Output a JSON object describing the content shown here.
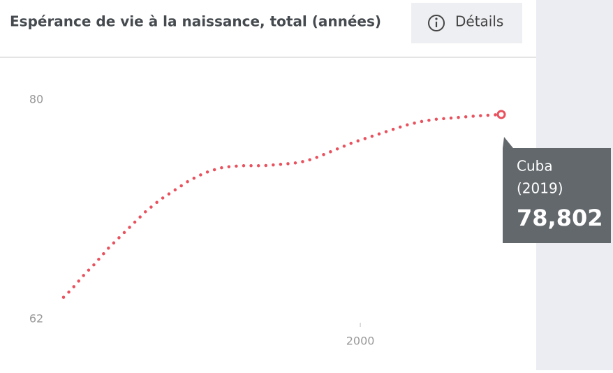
{
  "header": {
    "title": "Espérance de vie à la naissance, total (années)",
    "button": "Détails"
  },
  "chart_data": {
    "type": "line",
    "x": [
      1960,
      1961,
      1962,
      1963,
      1964,
      1965,
      1966,
      1967,
      1968,
      1969,
      1970,
      1971,
      1972,
      1973,
      1974,
      1975,
      1976,
      1977,
      1978,
      1979,
      1980,
      1981,
      1982,
      1983,
      1984,
      1985,
      1986,
      1987,
      1988,
      1989,
      1990,
      1991,
      1992,
      1993,
      1994,
      1995,
      1996,
      1997,
      1998,
      1999,
      2000,
      2001,
      2002,
      2003,
      2004,
      2005,
      2006,
      2007,
      2008,
      2009,
      2010,
      2011,
      2012,
      2013,
      2014,
      2015,
      2016,
      2017,
      2018,
      2019
    ],
    "series": [
      {
        "name": "Cuba",
        "color": "#e8515d",
        "values": [
          63.8,
          64.4,
          65.1,
          65.8,
          66.4,
          67.1,
          67.8,
          68.4,
          69.0,
          69.6,
          70.2,
          70.8,
          71.3,
          71.8,
          72.2,
          72.6,
          73.0,
          73.4,
          73.7,
          74.0,
          74.2,
          74.4,
          74.5,
          74.55,
          74.6,
          74.6,
          74.6,
          74.6,
          74.65,
          74.7,
          74.75,
          74.8,
          74.9,
          75.05,
          75.25,
          75.5,
          75.75,
          76.0,
          76.25,
          76.5,
          76.7,
          76.9,
          77.1,
          77.3,
          77.5,
          77.7,
          77.9,
          78.05,
          78.2,
          78.3,
          78.4,
          78.45,
          78.5,
          78.55,
          78.6,
          78.65,
          78.7,
          78.73,
          78.77,
          78.802
        ]
      }
    ],
    "xlim": [
      1960,
      2019
    ],
    "xticks": [
      2000
    ],
    "ylim": [
      62,
      80
    ],
    "yticks": [
      62,
      80
    ],
    "tooltip": {
      "series": "Cuba",
      "period": "(2019)",
      "value_label": "78,802"
    }
  }
}
